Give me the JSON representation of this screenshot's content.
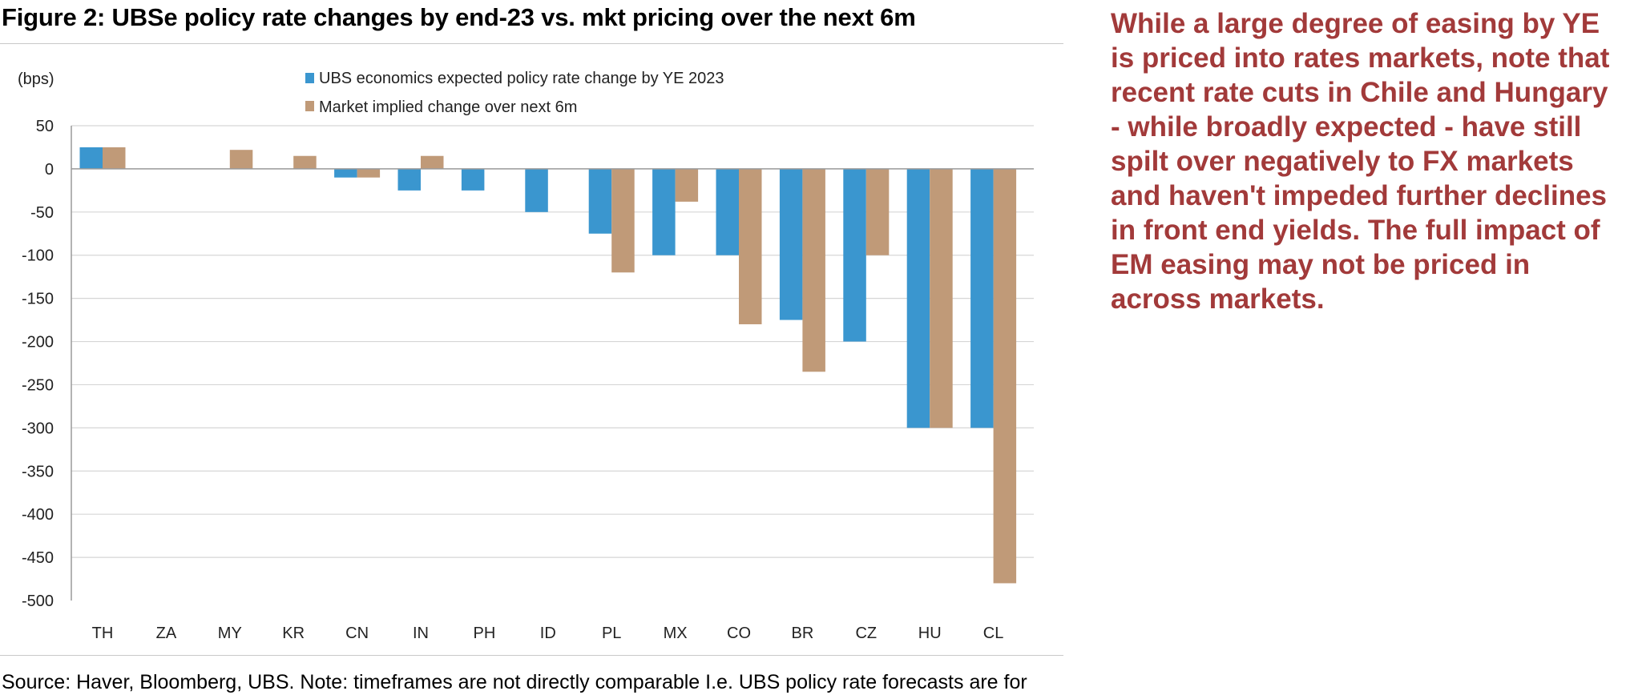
{
  "figure_title": "Figure 2: UBSe policy rate changes by end-23 vs. mkt pricing over the next 6m",
  "source_note": "Source: Haver, Bloomberg, UBS. Note: timeframes are not directly comparable I.e. UBS policy rate forecasts are for",
  "commentary": "While a large degree of easing by YE is priced into rates markets, note that recent rate cuts in Chile and Hungary - while broadly expected - have still spilt over negatively to FX markets and haven't impeded further declines in front end yields. The full impact of EM easing may not be priced in across markets.",
  "colors": {
    "ubs": "#3a96cf",
    "market": "#c09a78",
    "commentary": "#a23a3a"
  },
  "chart_data": {
    "type": "bar",
    "ylabel": "(bps)",
    "ylim": [
      -500,
      50
    ],
    "yticks": [
      50,
      0,
      -50,
      -100,
      -150,
      -200,
      -250,
      -300,
      -350,
      -400,
      -450,
      -500
    ],
    "grid": true,
    "legend_position": "top",
    "categories": [
      "TH",
      "ZA",
      "MY",
      "KR",
      "CN",
      "IN",
      "PH",
      "ID",
      "PL",
      "MX",
      "CO",
      "BR",
      "CZ",
      "HU",
      "CL"
    ],
    "series": [
      {
        "name": "UBS economics expected policy rate change by YE 2023",
        "values": [
          25,
          0,
          0,
          0,
          -10,
          -25,
          -25,
          -50,
          -75,
          -100,
          -100,
          -175,
          -200,
          -300,
          -300
        ]
      },
      {
        "name": "Market implied change over next 6m",
        "values": [
          25,
          0,
          22,
          15,
          -10,
          15,
          0,
          0,
          -120,
          -38,
          -180,
          -235,
          -100,
          -300,
          -480
        ]
      }
    ]
  }
}
